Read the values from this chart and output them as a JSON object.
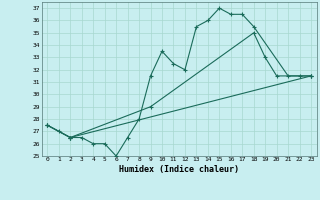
{
  "xlabel": "Humidex (Indice chaleur)",
  "bg_color": "#c8eef0",
  "grid_color": "#a8d8d0",
  "line_color": "#1a6b5a",
  "xlim": [
    -0.5,
    23.5
  ],
  "ylim": [
    25,
    37.5
  ],
  "yticks": [
    25,
    26,
    27,
    28,
    29,
    30,
    31,
    32,
    33,
    34,
    35,
    36,
    37
  ],
  "xticks": [
    0,
    1,
    2,
    3,
    4,
    5,
    6,
    7,
    8,
    9,
    10,
    11,
    12,
    13,
    14,
    15,
    16,
    17,
    18,
    19,
    20,
    21,
    22,
    23
  ],
  "line1_x": [
    0,
    1,
    2,
    3,
    4,
    5,
    6,
    7,
    8,
    9,
    10,
    11,
    12,
    13,
    14,
    15,
    16,
    17,
    18,
    21,
    22,
    23
  ],
  "line1_y": [
    27.5,
    27.0,
    26.5,
    26.5,
    26.0,
    26.0,
    25.0,
    26.5,
    28.0,
    31.5,
    33.5,
    32.5,
    32.0,
    35.5,
    36.0,
    37.0,
    36.5,
    36.5,
    35.5,
    31.5,
    31.5,
    31.5
  ],
  "line2_x": [
    0,
    2,
    9,
    18,
    19,
    20,
    23
  ],
  "line2_y": [
    27.5,
    26.5,
    29.0,
    35.0,
    33.0,
    31.5,
    31.5
  ],
  "line3_x": [
    0,
    2,
    23
  ],
  "line3_y": [
    27.5,
    26.5,
    31.5
  ]
}
